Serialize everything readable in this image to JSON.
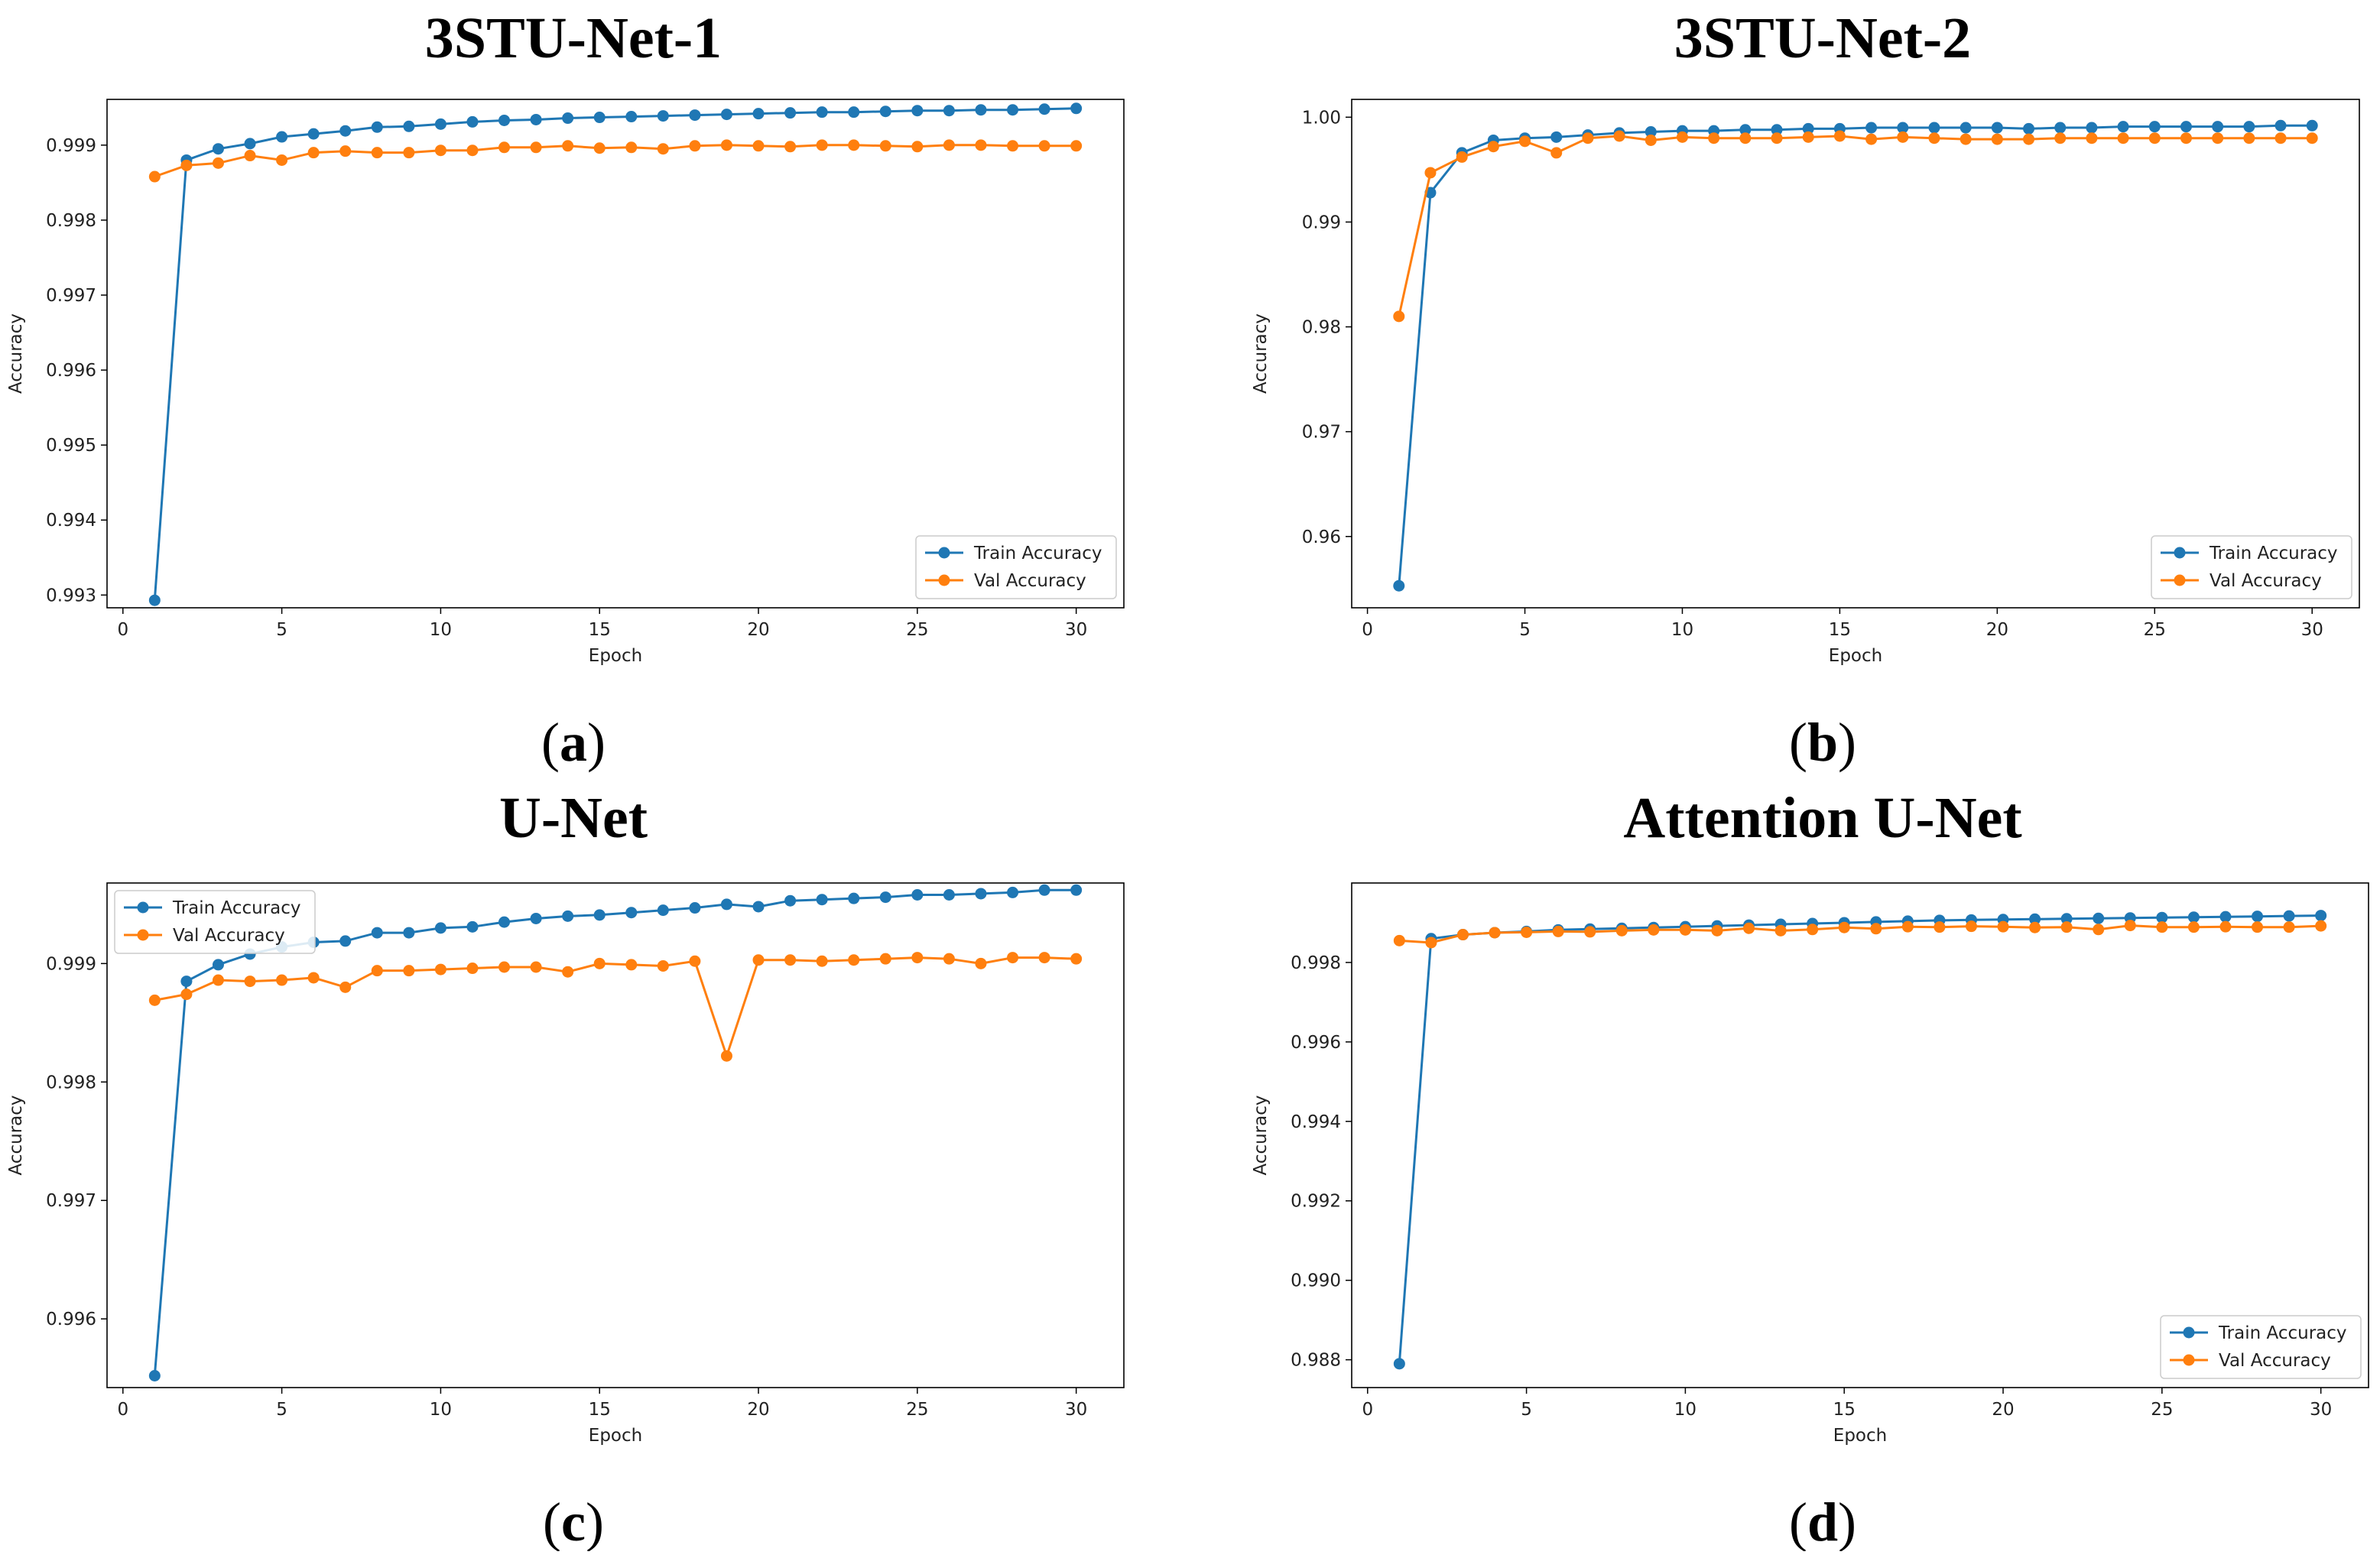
{
  "colors": {
    "train": "#1f77b4",
    "val": "#ff7f0e"
  },
  "chart_data": [
    {
      "id": "a",
      "type": "line",
      "title": "3STU-Net-1",
      "caption_letter": "a",
      "xlabel": "Epoch",
      "ylabel": "Accuracy",
      "xlim": [
        -0.5,
        31.5
      ],
      "ylim": [
        0.99283,
        0.99961
      ],
      "xticks": [
        0,
        5,
        10,
        15,
        20,
        25,
        30
      ],
      "xtick_labels": [
        "0",
        "5",
        "10",
        "15",
        "20",
        "25",
        "30"
      ],
      "yticks": [
        0.993,
        0.994,
        0.995,
        0.996,
        0.997,
        0.998,
        0.999
      ],
      "ytick_labels": [
        "0.993",
        "0.994",
        "0.995",
        "0.996",
        "0.997",
        "0.998",
        "0.999"
      ],
      "legend_position": "lower-right",
      "x": [
        1,
        2,
        3,
        4,
        5,
        6,
        7,
        8,
        9,
        10,
        11,
        12,
        13,
        14,
        15,
        16,
        17,
        18,
        19,
        20,
        21,
        22,
        23,
        24,
        25,
        26,
        27,
        28,
        29,
        30
      ],
      "series": [
        {
          "name": "Train Accuracy",
          "values": [
            0.99293,
            0.9988,
            0.99895,
            0.99902,
            0.99911,
            0.99915,
            0.99919,
            0.99924,
            0.99925,
            0.99928,
            0.99931,
            0.99933,
            0.99934,
            0.99936,
            0.99937,
            0.99938,
            0.99939,
            0.9994,
            0.99941,
            0.99942,
            0.99943,
            0.99944,
            0.99944,
            0.99945,
            0.99946,
            0.99946,
            0.99947,
            0.99947,
            0.99948,
            0.99949
          ]
        },
        {
          "name": "Val Accuracy",
          "values": [
            0.99858,
            0.99873,
            0.99876,
            0.99886,
            0.9988,
            0.9989,
            0.99892,
            0.9989,
            0.9989,
            0.99893,
            0.99893,
            0.99897,
            0.99897,
            0.99899,
            0.99896,
            0.99897,
            0.99895,
            0.99899,
            0.999,
            0.99899,
            0.99898,
            0.999,
            0.999,
            0.99899,
            0.99898,
            0.999,
            0.999,
            0.99899,
            0.99899,
            0.99899
          ]
        }
      ]
    },
    {
      "id": "b",
      "type": "line",
      "title": "3STU-Net-2",
      "caption_letter": "b",
      "xlabel": "Epoch",
      "ylabel": "Accuracy",
      "xlim": [
        -0.5,
        31.5
      ],
      "ylim": [
        0.9532,
        1.0017
      ],
      "xticks": [
        0,
        5,
        10,
        15,
        20,
        25,
        30
      ],
      "xtick_labels": [
        "0",
        "5",
        "10",
        "15",
        "20",
        "25",
        "30"
      ],
      "yticks": [
        0.96,
        0.97,
        0.98,
        0.99,
        1.0
      ],
      "ytick_labels": [
        "0.96",
        "0.97",
        "0.98",
        "0.99",
        "1.00"
      ],
      "legend_position": "lower-right",
      "x": [
        1,
        2,
        3,
        4,
        5,
        6,
        7,
        8,
        9,
        10,
        11,
        12,
        13,
        14,
        15,
        16,
        17,
        18,
        19,
        20,
        21,
        22,
        23,
        24,
        25,
        26,
        27,
        28,
        29,
        30
      ],
      "series": [
        {
          "name": "Train Accuracy",
          "values": [
            0.9553,
            0.9928,
            0.9966,
            0.9978,
            0.998,
            0.9981,
            0.9983,
            0.9985,
            0.9986,
            0.9987,
            0.9987,
            0.9988,
            0.9988,
            0.9989,
            0.9989,
            0.999,
            0.999,
            0.999,
            0.999,
            0.999,
            0.9989,
            0.999,
            0.999,
            0.9991,
            0.9991,
            0.9991,
            0.9991,
            0.9991,
            0.9992,
            0.9992
          ]
        },
        {
          "name": "Val Accuracy",
          "values": [
            0.981,
            0.9947,
            0.9962,
            0.9972,
            0.9977,
            0.9966,
            0.998,
            0.9982,
            0.9978,
            0.9981,
            0.998,
            0.998,
            0.998,
            0.9981,
            0.9982,
            0.9979,
            0.9981,
            0.998,
            0.9979,
            0.9979,
            0.9979,
            0.998,
            0.998,
            0.998,
            0.998,
            0.998,
            0.998,
            0.998,
            0.998,
            0.998
          ]
        }
      ]
    },
    {
      "id": "c",
      "type": "line",
      "title": "U-Net",
      "caption_letter": "c",
      "xlabel": "Epoch",
      "ylabel": "Accuracy",
      "xlim": [
        -0.5,
        31.5
      ],
      "ylim": [
        0.99542,
        0.99968
      ],
      "xticks": [
        0,
        5,
        10,
        15,
        20,
        25,
        30
      ],
      "xtick_labels": [
        "0",
        "5",
        "10",
        "15",
        "20",
        "25",
        "30"
      ],
      "yticks": [
        0.996,
        0.997,
        0.998,
        0.999
      ],
      "ytick_labels": [
        "0.996",
        "0.997",
        "0.998",
        "0.999"
      ],
      "legend_position": "top-left",
      "x": [
        1,
        2,
        3,
        4,
        5,
        6,
        7,
        8,
        9,
        10,
        11,
        12,
        13,
        14,
        15,
        16,
        17,
        18,
        19,
        20,
        21,
        22,
        23,
        24,
        25,
        26,
        27,
        28,
        29,
        30
      ],
      "series": [
        {
          "name": "Train Accuracy",
          "values": [
            0.99552,
            0.99885,
            0.99899,
            0.99908,
            0.99914,
            0.99918,
            0.99919,
            0.99926,
            0.99926,
            0.9993,
            0.99931,
            0.99935,
            0.99938,
            0.9994,
            0.99941,
            0.99943,
            0.99945,
            0.99947,
            0.9995,
            0.99948,
            0.99953,
            0.99954,
            0.99955,
            0.99956,
            0.99958,
            0.99958,
            0.99959,
            0.9996,
            0.99962,
            0.99962
          ]
        },
        {
          "name": "Val Accuracy",
          "values": [
            0.99869,
            0.99874,
            0.99886,
            0.99885,
            0.99886,
            0.99888,
            0.9988,
            0.99894,
            0.99894,
            0.99895,
            0.99896,
            0.99897,
            0.99897,
            0.99893,
            0.999,
            0.99899,
            0.99898,
            0.99902,
            0.99822,
            0.99903,
            0.99903,
            0.99902,
            0.99903,
            0.99904,
            0.99905,
            0.99904,
            0.999,
            0.99905,
            0.99905,
            0.99904
          ]
        }
      ]
    },
    {
      "id": "d",
      "type": "line",
      "title": "Attention U-Net",
      "caption_letter": "d",
      "xlabel": "Epoch",
      "ylabel": "Accuracy",
      "xlim": [
        -0.5,
        31.5
      ],
      "ylim": [
        0.9873,
        1.0
      ],
      "xticks": [
        0,
        5,
        10,
        15,
        20,
        25,
        30
      ],
      "xtick_labels": [
        "0",
        "5",
        "10",
        "15",
        "20",
        "25",
        "30"
      ],
      "yticks": [
        0.988,
        0.99,
        0.992,
        0.994,
        0.996,
        0.998
      ],
      "ytick_labels": [
        "0.988",
        "0.990",
        "0.992",
        "0.994",
        "0.996",
        "0.998"
      ],
      "legend_position": "lower-right",
      "x": [
        1,
        2,
        3,
        4,
        5,
        6,
        7,
        8,
        9,
        10,
        11,
        12,
        13,
        14,
        15,
        16,
        17,
        18,
        19,
        20,
        21,
        22,
        23,
        24,
        25,
        26,
        27,
        28,
        29,
        30
      ],
      "series": [
        {
          "name": "Train Accuracy",
          "values": [
            0.9879,
            0.9986,
            0.9987,
            0.99875,
            0.99878,
            0.99882,
            0.99884,
            0.99886,
            0.99888,
            0.9989,
            0.99892,
            0.99894,
            0.99896,
            0.99898,
            0.999,
            0.99902,
            0.99904,
            0.99906,
            0.99907,
            0.99908,
            0.99909,
            0.9991,
            0.99911,
            0.99912,
            0.99913,
            0.99914,
            0.99915,
            0.99916,
            0.99917,
            0.99918
          ]
        },
        {
          "name": "Val Accuracy",
          "values": [
            0.99855,
            0.9985,
            0.9987,
            0.99875,
            0.99876,
            0.99878,
            0.99877,
            0.9988,
            0.99882,
            0.99882,
            0.9988,
            0.99886,
            0.9988,
            0.99883,
            0.99888,
            0.99885,
            0.9989,
            0.99889,
            0.99891,
            0.9989,
            0.99888,
            0.99889,
            0.99883,
            0.99893,
            0.99889,
            0.99889,
            0.9989,
            0.99889,
            0.99889,
            0.99892
          ]
        }
      ]
    }
  ]
}
